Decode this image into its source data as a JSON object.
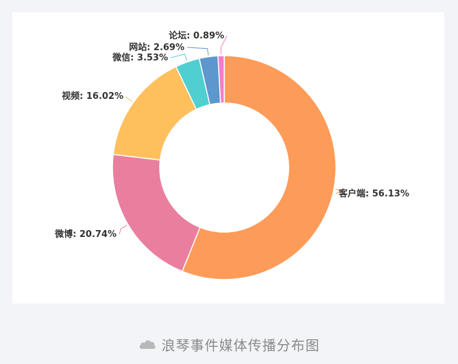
{
  "chart_data": {
    "type": "pie",
    "variant": "donut",
    "slices": [
      {
        "name": "客户端",
        "value": 56.13,
        "label": "客户端: 56.13%",
        "color": "#fd9b58"
      },
      {
        "name": "微博",
        "value": 20.74,
        "label": "微博: 20.74%",
        "color": "#ea7e9e"
      },
      {
        "name": "视频",
        "value": 16.02,
        "label": "视频: 16.02%",
        "color": "#fec05d"
      },
      {
        "name": "微信",
        "value": 3.53,
        "label": "微信: 3.53%",
        "color": "#50cfd1"
      },
      {
        "name": "网站",
        "value": 2.69,
        "label": "网站: 2.69%",
        "color": "#5e96ce"
      },
      {
        "name": "论坛",
        "value": 0.89,
        "label": "论坛: 0.89%",
        "color": "#f57cc6"
      }
    ]
  },
  "caption": {
    "icon": "cloud-icon",
    "text": "浪琴事件媒体传播分布图"
  }
}
